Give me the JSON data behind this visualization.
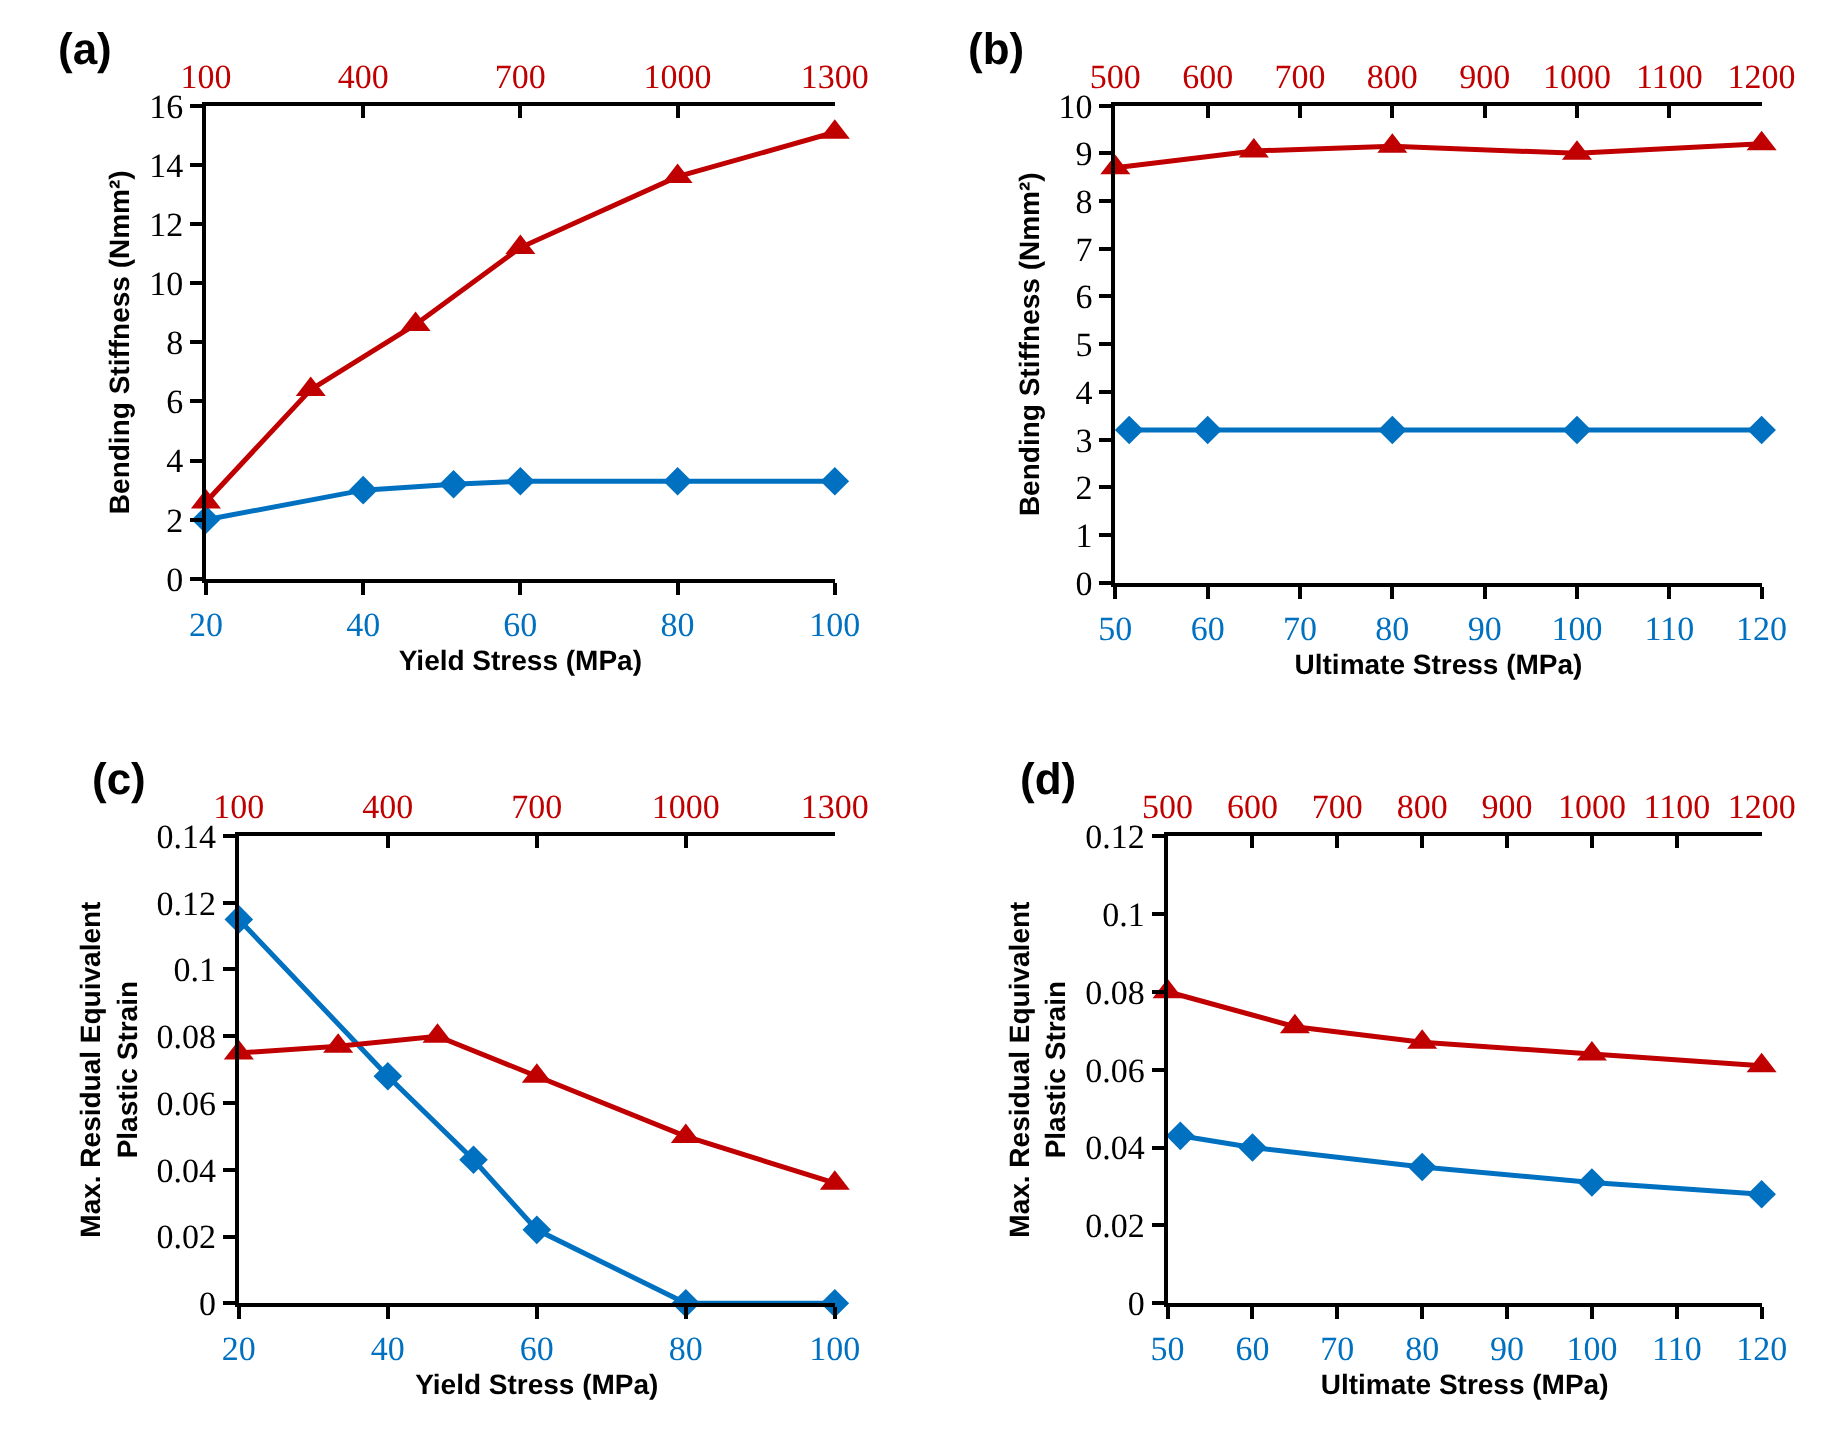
{
  "chart_data": [
    {
      "type": "line",
      "title": "(a)",
      "xlabel": "Yield Stress (MPa)",
      "ylabel": "Bending Stiffness (Nmm²)",
      "xlim": [
        20,
        100
      ],
      "xticks": [
        20,
        40,
        60,
        80,
        100
      ],
      "x2lim": [
        100,
        1300
      ],
      "x2ticks": [
        100,
        400,
        700,
        1000,
        1300
      ],
      "ylim": [
        0,
        16
      ],
      "yticks": [
        0,
        2,
        4,
        6,
        8,
        10,
        12,
        14,
        16
      ],
      "series": [
        {
          "color": "#0070c0",
          "marker": "diamond",
          "x": [
            20,
            40,
            51.5,
            60,
            80,
            100
          ],
          "values": [
            2.0,
            3.0,
            3.2,
            3.3,
            3.3,
            3.3
          ]
        },
        {
          "color": "#c00000",
          "marker": "triangle",
          "axis": "x2",
          "x": [
            100,
            300,
            500,
            700,
            1000,
            1300
          ],
          "values": [
            2.6,
            6.4,
            8.6,
            11.2,
            13.6,
            15.1
          ]
        }
      ]
    },
    {
      "type": "line",
      "title": "(b)",
      "xlabel": "Ultimate Stress (MPa)",
      "ylabel": "Bending Stiffness (Nmm²)",
      "xlim": [
        50,
        120
      ],
      "xticks": [
        50,
        60,
        70,
        80,
        90,
        100,
        110,
        120
      ],
      "x2lim": [
        500,
        1200
      ],
      "x2ticks": [
        500,
        600,
        700,
        800,
        900,
        1000,
        1100,
        1200
      ],
      "ylim": [
        0,
        10
      ],
      "yticks": [
        0,
        1,
        2,
        3,
        4,
        5,
        6,
        7,
        8,
        9,
        10
      ],
      "series": [
        {
          "color": "#0070c0",
          "marker": "diamond",
          "x": [
            51.5,
            60,
            80,
            100,
            120
          ],
          "values": [
            3.2,
            3.2,
            3.2,
            3.2,
            3.2
          ]
        },
        {
          "color": "#c00000",
          "marker": "triangle",
          "axis": "x2",
          "x": [
            500,
            650,
            800,
            1000,
            1200
          ],
          "values": [
            8.7,
            9.05,
            9.15,
            9.0,
            9.2
          ]
        }
      ]
    },
    {
      "type": "line",
      "title": "(c)",
      "xlabel": "Yield Stress (MPa)",
      "ylabel": "Max. Residual Equivalent\nPlastic Strain",
      "xlim": [
        20,
        100
      ],
      "xticks": [
        20,
        40,
        60,
        80,
        100
      ],
      "x2lim": [
        100,
        1300
      ],
      "x2ticks": [
        100,
        400,
        700,
        1000,
        1300
      ],
      "ylim": [
        0,
        0.14
      ],
      "yticks": [
        0,
        0.02,
        0.04,
        0.06,
        0.08,
        0.1,
        0.12,
        0.14
      ],
      "series": [
        {
          "color": "#0070c0",
          "marker": "diamond",
          "x": [
            20,
            40,
            51.5,
            60,
            80,
            100
          ],
          "values": [
            0.115,
            0.068,
            0.043,
            0.022,
            0,
            0
          ]
        },
        {
          "color": "#c00000",
          "marker": "triangle",
          "axis": "x2",
          "x": [
            100,
            300,
            500,
            700,
            1000,
            1300
          ],
          "values": [
            0.075,
            0.077,
            0.08,
            0.068,
            0.05,
            0.036
          ]
        }
      ]
    },
    {
      "type": "line",
      "title": "(d)",
      "xlabel": "Ultimate Stress (MPa)",
      "ylabel": "Max. Residual Equivalent\nPlastic Strain",
      "xlim": [
        50,
        120
      ],
      "xticks": [
        50,
        60,
        70,
        80,
        90,
        100,
        110,
        120
      ],
      "x2lim": [
        500,
        1200
      ],
      "x2ticks": [
        500,
        600,
        700,
        800,
        900,
        1000,
        1100,
        1200
      ],
      "ylim": [
        0,
        0.12
      ],
      "yticks": [
        0,
        0.02,
        0.04,
        0.06,
        0.08,
        0.1,
        0.12
      ],
      "series": [
        {
          "color": "#0070c0",
          "marker": "diamond",
          "x": [
            51.5,
            60,
            80,
            100,
            120
          ],
          "values": [
            0.043,
            0.04,
            0.035,
            0.031,
            0.028
          ]
        },
        {
          "color": "#c00000",
          "marker": "triangle",
          "axis": "x2",
          "x": [
            500,
            650,
            800,
            1000,
            1200
          ],
          "values": [
            0.08,
            0.071,
            0.067,
            0.064,
            0.061
          ]
        }
      ]
    }
  ]
}
